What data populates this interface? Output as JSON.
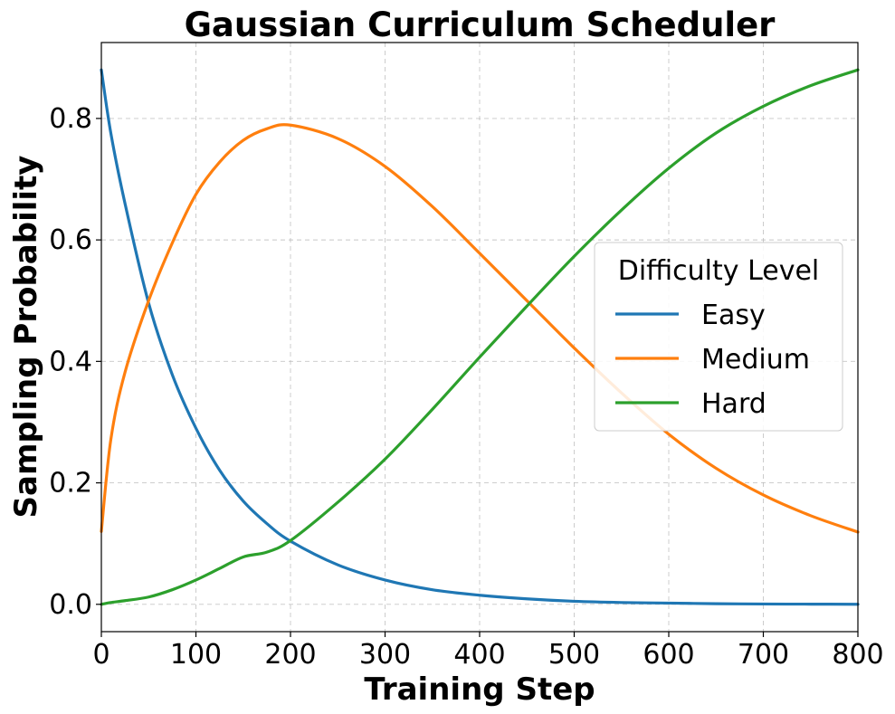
{
  "chart_data": {
    "type": "line",
    "title": "Gaussian Curriculum Scheduler",
    "xlabel": "Training Step",
    "ylabel": "Sampling Probability",
    "xlim": [
      0,
      800
    ],
    "ylim": [
      -0.045,
      0.925
    ],
    "xticks": [
      0,
      100,
      200,
      300,
      400,
      500,
      600,
      700,
      800
    ],
    "xtick_labels": [
      "0",
      "100",
      "200",
      "300",
      "400",
      "500",
      "600",
      "700",
      "800"
    ],
    "yticks": [
      0.0,
      0.2,
      0.4,
      0.6,
      0.8
    ],
    "ytick_labels": [
      "0.0",
      "0.2",
      "0.4",
      "0.6",
      "0.8"
    ],
    "grid": true,
    "legend": {
      "title": "Difficulty Level",
      "placement": "center-right"
    },
    "x": [
      0,
      10,
      25,
      50,
      75,
      100,
      125,
      150,
      175,
      200,
      250,
      300,
      350,
      400,
      450,
      500,
      550,
      600,
      650,
      700,
      750,
      800
    ],
    "series": [
      {
        "name": "Easy",
        "color": "#1f77b4",
        "values": [
          0.88,
          0.776,
          0.66,
          0.496,
          0.378,
          0.29,
          0.221,
          0.17,
          0.133,
          0.104,
          0.065,
          0.04,
          0.024,
          0.015,
          0.009,
          0.005,
          0.003,
          0.002,
          0.001,
          0.0005,
          0.0003,
          0.0001
        ]
      },
      {
        "name": "Medium",
        "color": "#ff7f0e",
        "values": [
          0.12,
          0.271,
          0.382,
          0.5,
          0.595,
          0.675,
          0.728,
          0.764,
          0.783,
          0.789,
          0.767,
          0.721,
          0.655,
          0.578,
          0.5,
          0.422,
          0.348,
          0.28,
          0.224,
          0.18,
          0.146,
          0.119
        ]
      },
      {
        "name": "Hard",
        "color": "#2ca02c",
        "values": [
          0.0,
          0.003,
          0.006,
          0.012,
          0.024,
          0.04,
          0.059,
          0.078,
          0.086,
          0.105,
          0.168,
          0.239,
          0.321,
          0.407,
          0.491,
          0.573,
          0.649,
          0.718,
          0.776,
          0.82,
          0.854,
          0.88
        ]
      }
    ]
  }
}
